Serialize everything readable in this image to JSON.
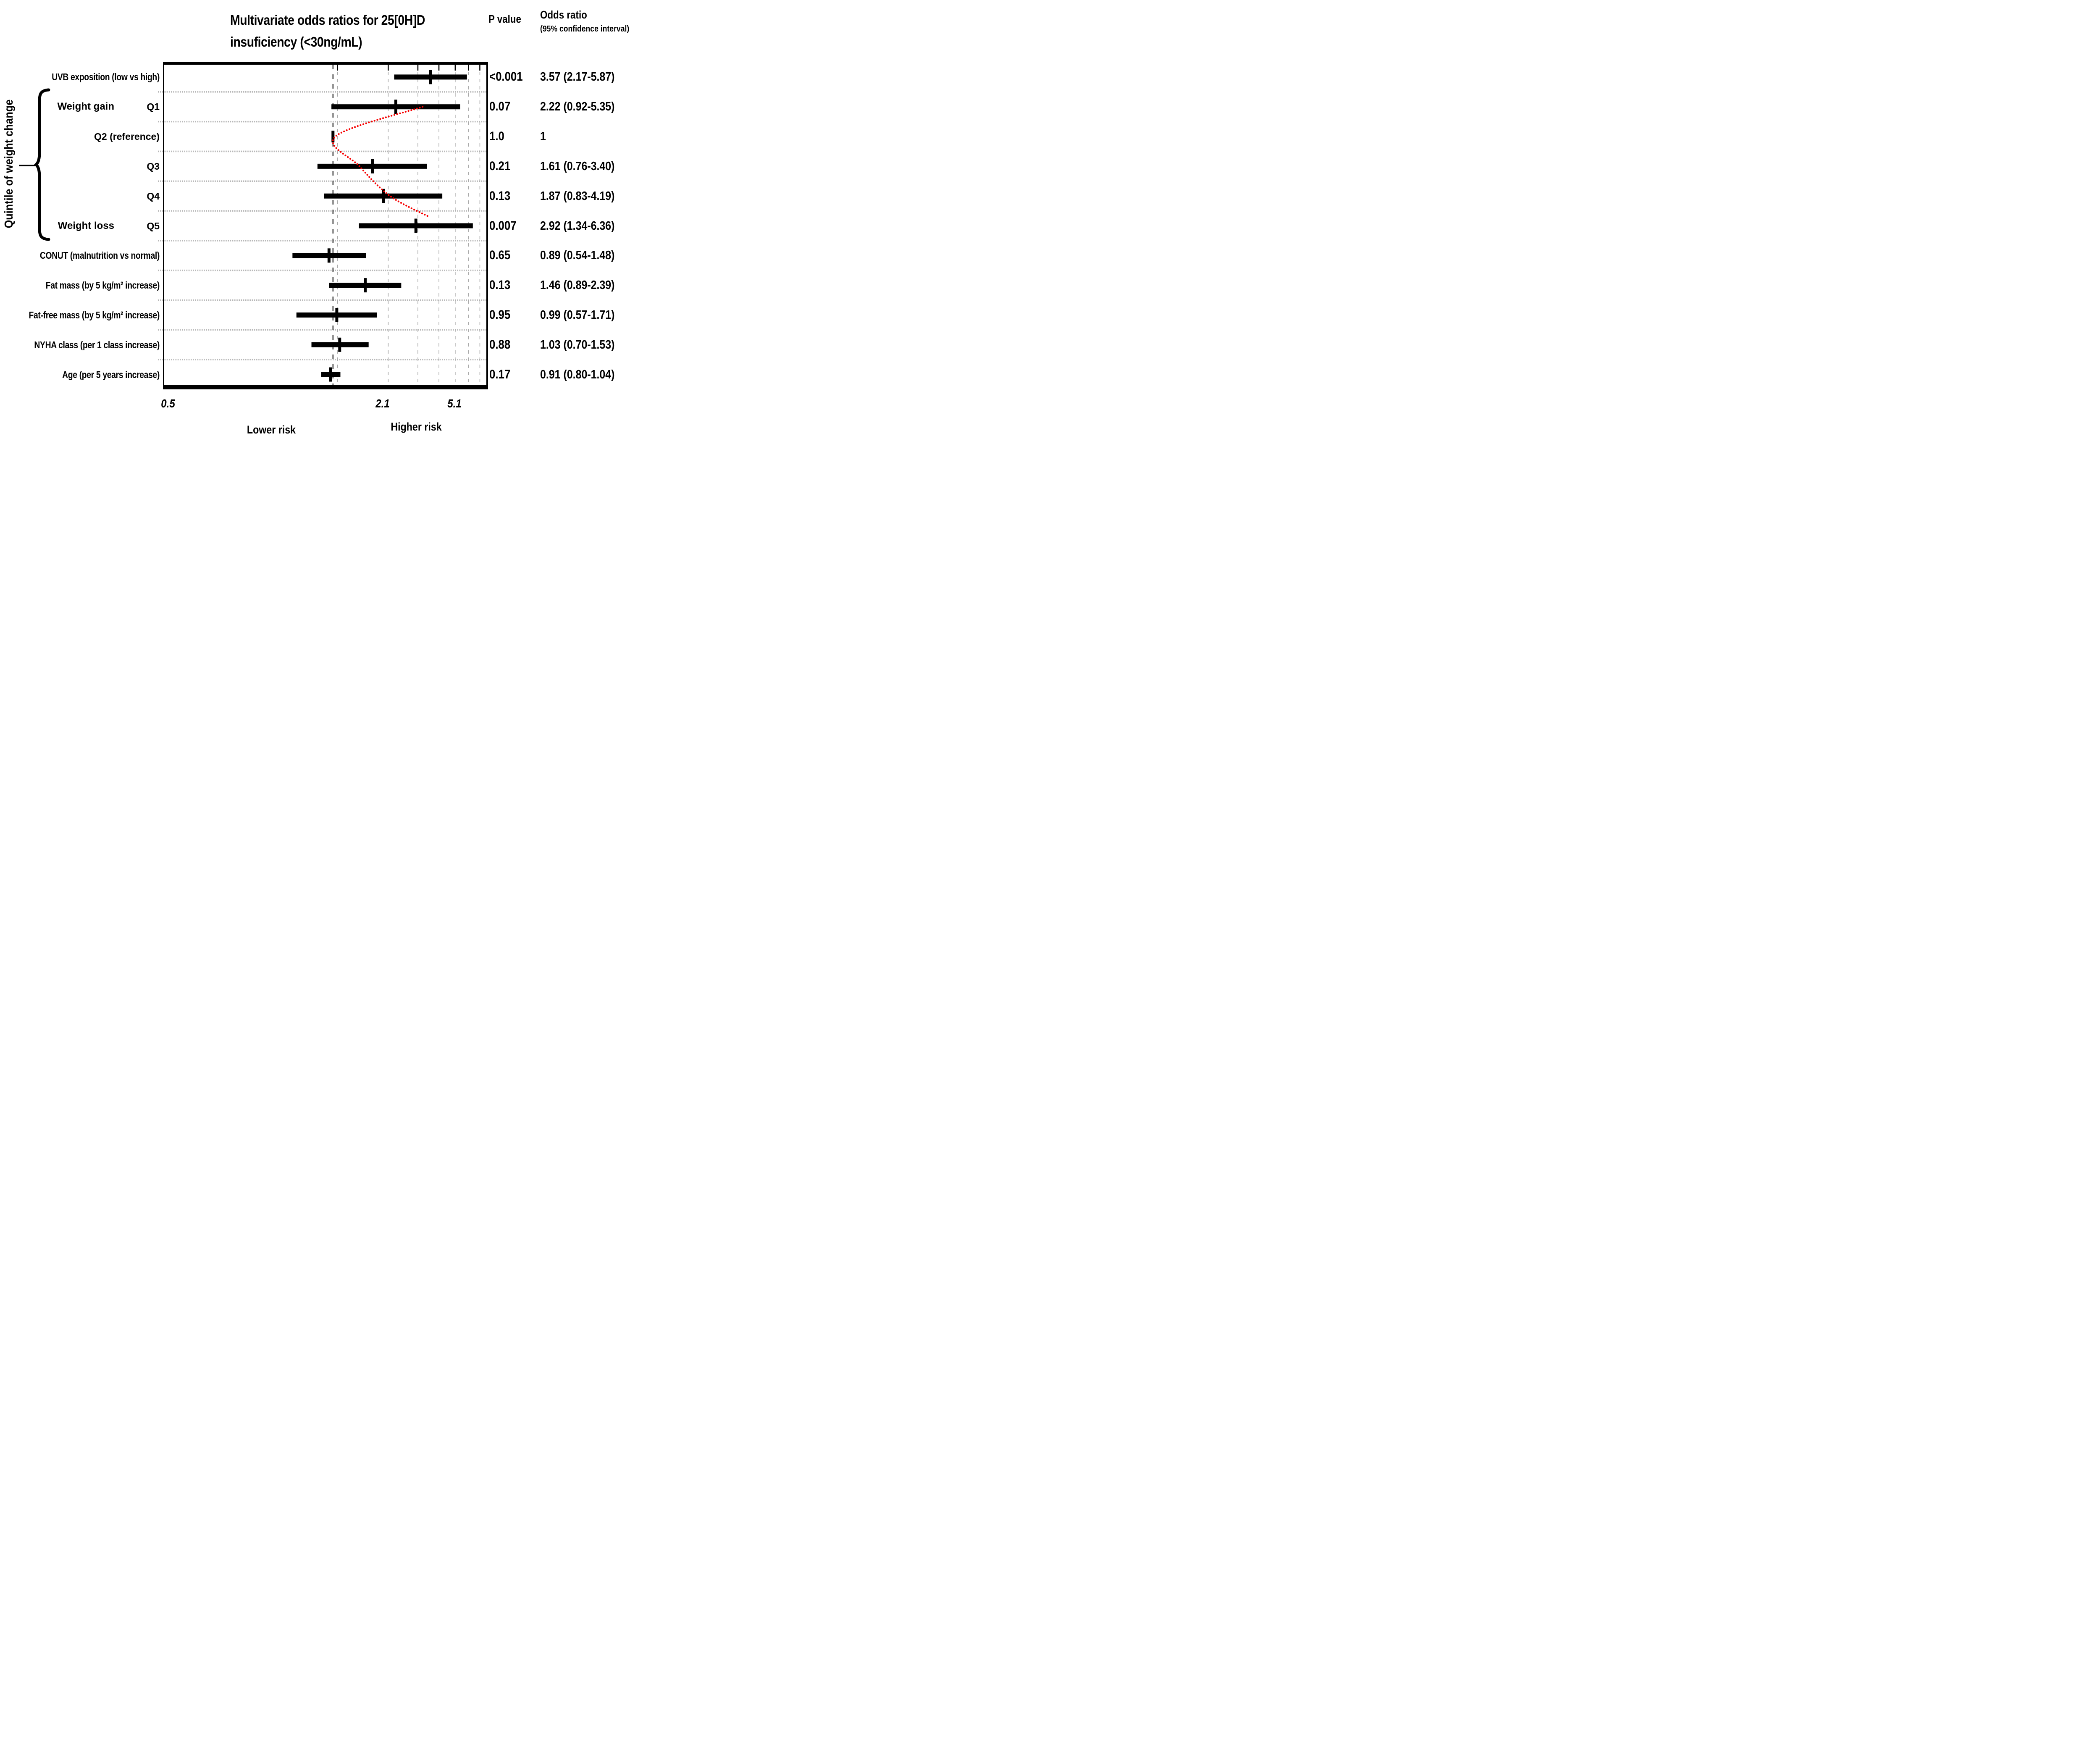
{
  "title": {
    "line1": "Multivariate odds ratios for 25[0H]D",
    "line2": "insuficiency (<30ng/mL)"
  },
  "headers": {
    "p_value": "P value",
    "odds_ratio_line1": "Odds ratio",
    "odds_ratio_line2": "(95% confidence interval)"
  },
  "y_axis_group_label": "Quintile of weight change",
  "x_axis": {
    "tick_labels": [
      "0.5",
      "2.1",
      "5.1"
    ],
    "lower_risk_label": "Lower risk",
    "higher_risk_label": "Higher risk"
  },
  "colors": {
    "background": "#ffffff",
    "text": "#000000",
    "marker": "#000000",
    "trend_curve": "#f70000",
    "gridline": "#a9a9a9",
    "row_separator": "#b7b7b7",
    "reference_line": "#000000"
  },
  "chart_data": {
    "type": "forest",
    "x_scale": "log",
    "x_gridline_values": [
      1,
      2,
      3,
      4,
      5,
      6,
      7
    ],
    "reference_line_or": 1.0,
    "rows": [
      {
        "label": "UVB exposition (low vs high)",
        "quintile": false,
        "group_label": null,
        "p_value": "<0.001",
        "or_text": "3.57 (2.17-5.87)",
        "or": 3.57,
        "ci_low": 2.17,
        "ci_high": 5.87,
        "is_reference": false
      },
      {
        "label": "Q1",
        "quintile": true,
        "group_label": "Weight gain",
        "p_value": "0.07",
        "or_text": "2.22 (0.92-5.35)",
        "or": 2.22,
        "ci_low": 0.92,
        "ci_high": 5.35,
        "is_reference": false
      },
      {
        "label": "Q2 (reference)",
        "quintile": true,
        "group_label": null,
        "p_value": "1.0",
        "or_text": "1",
        "or": 1.0,
        "ci_low": null,
        "ci_high": null,
        "is_reference": true
      },
      {
        "label": "Q3",
        "quintile": true,
        "group_label": null,
        "p_value": "0.21",
        "or_text": "1.61 (0.76-3.40)",
        "or": 1.61,
        "ci_low": 0.76,
        "ci_high": 3.4,
        "is_reference": false
      },
      {
        "label": "Q4",
        "quintile": true,
        "group_label": null,
        "p_value": "0.13",
        "or_text": "1.87 (0.83-4.19)",
        "or": 1.87,
        "ci_low": 0.83,
        "ci_high": 4.19,
        "is_reference": false
      },
      {
        "label": "Q5",
        "quintile": true,
        "group_label": "Weight loss",
        "p_value": "0.007",
        "or_text": "2.92 (1.34-6.36)",
        "or": 2.92,
        "ci_low": 1.34,
        "ci_high": 6.36,
        "is_reference": false
      },
      {
        "label": "CONUT (malnutrition vs normal)",
        "quintile": false,
        "group_label": null,
        "p_value": "0.65",
        "or_text": "0.89 (0.54-1.48)",
        "or": 0.89,
        "ci_low": 0.54,
        "ci_high": 1.48,
        "is_reference": false
      },
      {
        "label": "Fat mass (by 5 kg/m² increase)",
        "quintile": false,
        "group_label": null,
        "p_value": "0.13",
        "or_text": "1.46 (0.89-2.39)",
        "or": 1.46,
        "ci_low": 0.89,
        "ci_high": 2.39,
        "is_reference": false
      },
      {
        "label": "Fat-free mass (by 5 kg/m² increase)",
        "quintile": false,
        "group_label": null,
        "p_value": "0.95",
        "or_text": "0.99 (0.57-1.71)",
        "or": 0.99,
        "ci_low": 0.57,
        "ci_high": 1.71,
        "is_reference": false
      },
      {
        "label": "NYHA class (per 1 class increase)",
        "quintile": false,
        "group_label": null,
        "p_value": "0.88",
        "or_text": "1.03 (0.70-1.53)",
        "or": 1.03,
        "ci_low": 0.7,
        "ci_high": 1.53,
        "is_reference": false
      },
      {
        "label": "Age (per 5 years increase)",
        "quintile": false,
        "group_label": null,
        "p_value": "0.17",
        "or_text": "0.91 (0.80-1.04)",
        "or": 0.91,
        "ci_low": 0.8,
        "ci_high": 1.04,
        "is_reference": false
      }
    ],
    "quintile_bracket_covers_rows": [
      "Q1",
      "Q5"
    ],
    "trend_curve_points": [
      {
        "row_index": 1,
        "or": 3.2
      },
      {
        "row_index": 2,
        "or": 0.97
      },
      {
        "row_index": 3,
        "or": 1.35
      },
      {
        "row_index": 4,
        "or": 2.05
      },
      {
        "row_index": 4.7,
        "or": 3.5
      }
    ]
  }
}
